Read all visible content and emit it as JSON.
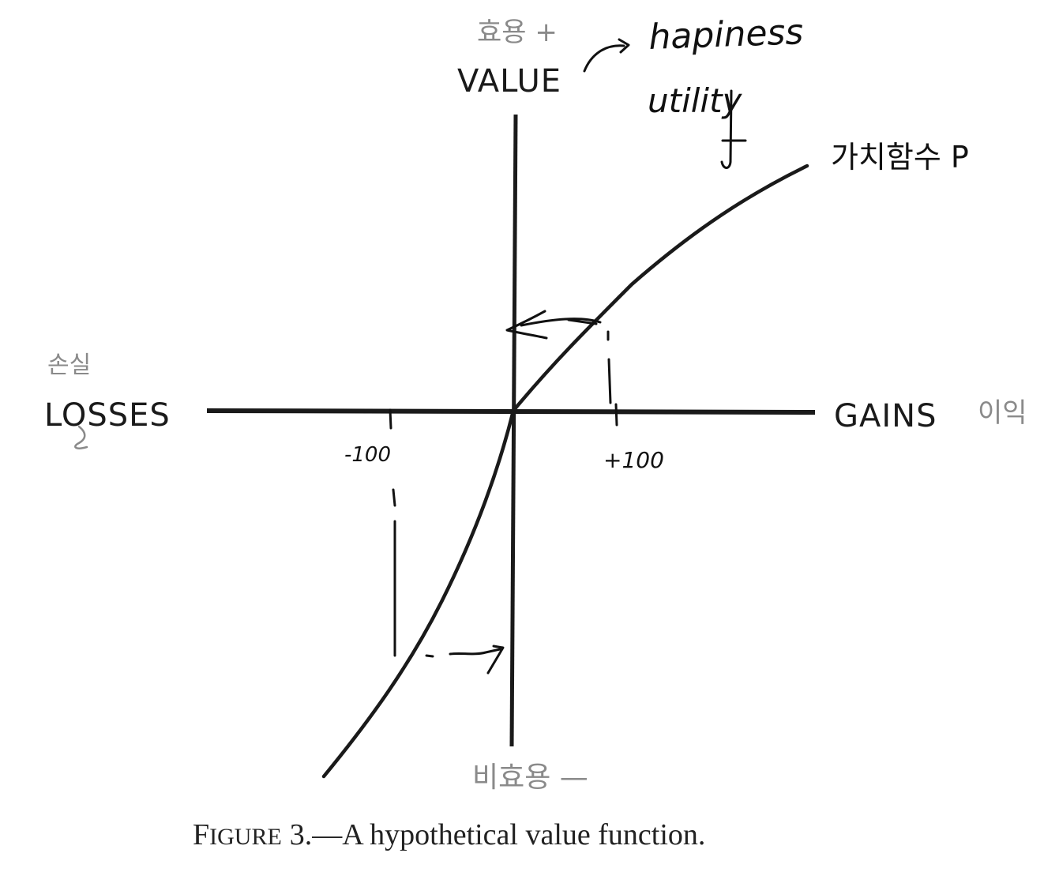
{
  "labels": {
    "value": "VALUE",
    "losses": "LOSSES",
    "gains": "GAINS"
  },
  "caption": {
    "figure_word_lead": "F",
    "figure_word_rest": "IGURE",
    "figure_number": "3.",
    "dash": "—",
    "text": "A hypothetical value function."
  },
  "annotations": {
    "top_korean": "효용 +",
    "bottom_korean": "비효용 —",
    "left_korean": "손실",
    "right_korean": "이익",
    "happiness": "hapiness",
    "utility": "utility",
    "value_function": "가치함수 P",
    "minus_100": "-100",
    "plus_100": "+100"
  },
  "colors": {
    "print_ink": "#1a1a1a",
    "pen_ink": "#111111",
    "pencil": "#8a8a8a",
    "background": "#ffffff"
  }
}
